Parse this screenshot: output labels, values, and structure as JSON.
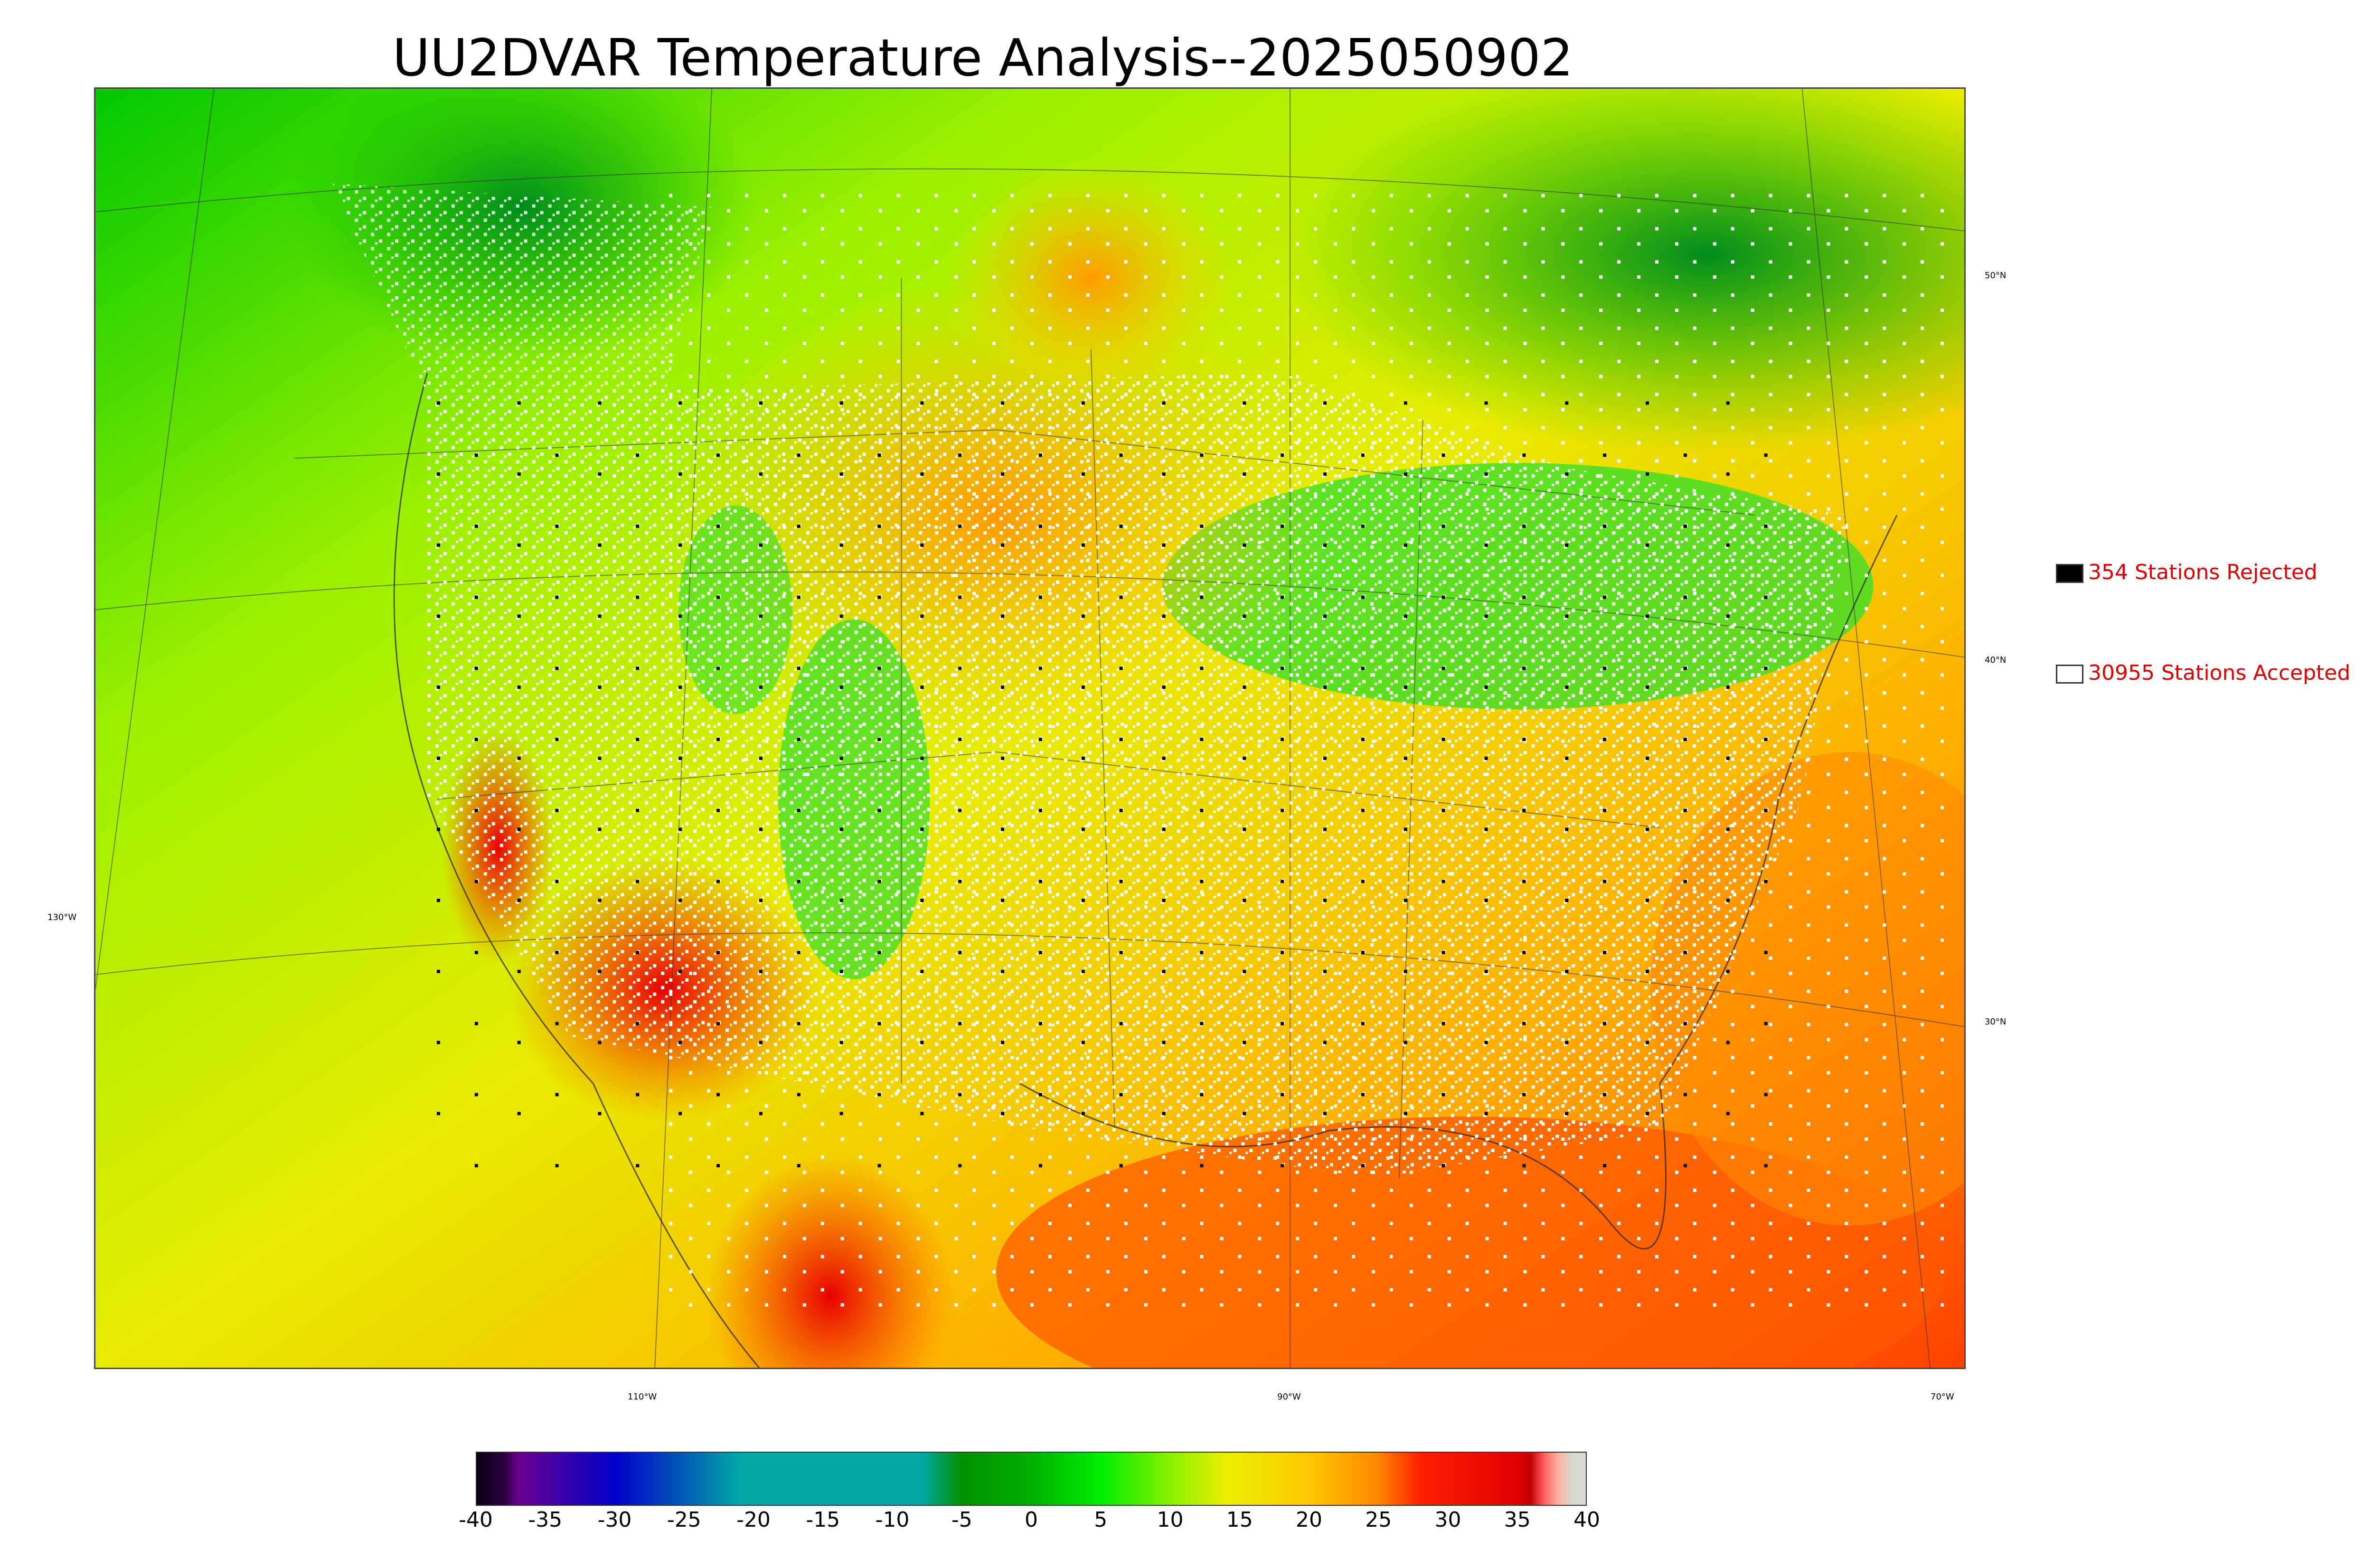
{
  "title": "UU2DVAR Temperature Analysis--2025050902",
  "colors": {
    "cold": "#00a000",
    "cool": "#2ecc2e",
    "mild": "#d8f000",
    "warm": "#ffa500",
    "hot": "#ff2000",
    "ocean_warm": "#ff6a00",
    "station_accepted": "#ffffff",
    "station_rejected": "#000000",
    "legend_text": "#e00000"
  },
  "legend": {
    "rejected": {
      "label": "354 Stations Rejected",
      "icon": "black-square-icon"
    },
    "accepted": {
      "label": "30955 Stations Accepted",
      "icon": "white-square-icon"
    }
  },
  "longitude_labels": [
    "130°W",
    "110°W",
    "90°W",
    "70°W"
  ],
  "latitude_labels": [
    "50°N",
    "40°N",
    "30°N"
  ],
  "colorbar": {
    "ticks": [
      "-40",
      "-35",
      "-30",
      "-25",
      "-20",
      "-15",
      "-10",
      "-5",
      "0",
      "5",
      "10",
      "15",
      "20",
      "25",
      "30",
      "35",
      "40"
    ],
    "range": [
      -40,
      40
    ],
    "stops": [
      {
        "value": -40,
        "color": "#0a0014"
      },
      {
        "value": -38,
        "color": "#2a0040"
      },
      {
        "value": -37,
        "color": "#6a0090"
      },
      {
        "value": -30,
        "color": "#0000c8"
      },
      {
        "value": -21,
        "color": "#00a8a8"
      },
      {
        "value": -8,
        "color": "#00a8a8"
      },
      {
        "value": -5,
        "color": "#009000"
      },
      {
        "value": 0,
        "color": "#00b000"
      },
      {
        "value": 5,
        "color": "#00ee00"
      },
      {
        "value": 10,
        "color": "#88f000"
      },
      {
        "value": 14,
        "color": "#ecf000"
      },
      {
        "value": 20,
        "color": "#ffc800"
      },
      {
        "value": 25,
        "color": "#ff8800"
      },
      {
        "value": 28,
        "color": "#ff2000"
      },
      {
        "value": 35,
        "color": "#e00000"
      },
      {
        "value": 36,
        "color": "#c00000"
      },
      {
        "value": 37,
        "color": "#ff6060"
      },
      {
        "value": 38,
        "color": "#ffb0a0"
      },
      {
        "value": 39,
        "color": "#d8d8d0"
      },
      {
        "value": 40,
        "color": "#d8d8d0"
      }
    ]
  }
}
